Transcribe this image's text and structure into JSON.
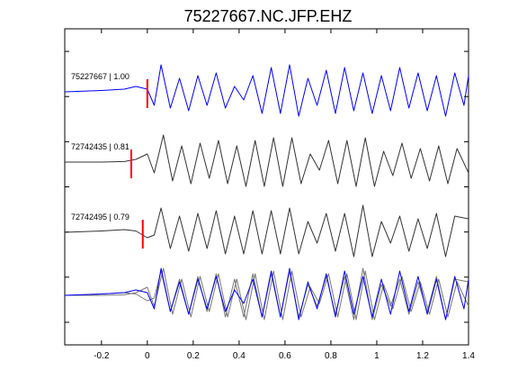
{
  "chart_data": {
    "type": "line",
    "title": "75227667.NC.JFP.EHZ",
    "xlabel": "",
    "ylabel": "",
    "xlim": [
      -0.36,
      1.4
    ],
    "x_ticks": [
      -0.2,
      0,
      0.2,
      0.4,
      0.6,
      0.8,
      1,
      1.2,
      1.4
    ],
    "x_tick_labels": [
      "-0.2",
      "0",
      "0.2",
      "0.4",
      "0.6",
      "0.8",
      "1",
      "1.2",
      "1.4"
    ],
    "grid": false,
    "colors": {
      "reference": "#0000ff",
      "match": "#333333",
      "pick": "#ff0000",
      "overlay_match": "#777777"
    },
    "traces": [
      {
        "label": "75227667 | 1.00",
        "color": "#0000ff",
        "pick_time": 0.0,
        "samples": [
          {
            "t": -0.36,
            "a": 0.0
          },
          {
            "t": -0.2,
            "a": 0.05
          },
          {
            "t": -0.1,
            "a": 0.1
          },
          {
            "t": -0.05,
            "a": 0.2
          },
          {
            "t": 0.0,
            "a": 0.1
          },
          {
            "t": 0.03,
            "a": -0.5
          },
          {
            "t": 0.06,
            "a": 1.0
          },
          {
            "t": 0.1,
            "a": -0.6
          },
          {
            "t": 0.14,
            "a": 0.5
          },
          {
            "t": 0.18,
            "a": -0.7
          },
          {
            "t": 0.22,
            "a": 0.6
          },
          {
            "t": 0.26,
            "a": -0.5
          },
          {
            "t": 0.3,
            "a": 0.7
          },
          {
            "t": 0.34,
            "a": -0.6
          },
          {
            "t": 0.38,
            "a": 0.2
          },
          {
            "t": 0.42,
            "a": -0.3
          },
          {
            "t": 0.46,
            "a": 0.6
          },
          {
            "t": 0.5,
            "a": -0.8
          },
          {
            "t": 0.54,
            "a": 0.9
          },
          {
            "t": 0.58,
            "a": -0.8
          },
          {
            "t": 0.62,
            "a": 1.0
          },
          {
            "t": 0.66,
            "a": -0.9
          },
          {
            "t": 0.7,
            "a": 0.5
          },
          {
            "t": 0.74,
            "a": -0.5
          },
          {
            "t": 0.78,
            "a": 0.8
          },
          {
            "t": 0.82,
            "a": -0.8
          },
          {
            "t": 0.86,
            "a": 0.9
          },
          {
            "t": 0.9,
            "a": -0.7
          },
          {
            "t": 0.94,
            "a": 0.7
          },
          {
            "t": 0.98,
            "a": -0.8
          },
          {
            "t": 1.02,
            "a": 0.6
          },
          {
            "t": 1.06,
            "a": -0.7
          },
          {
            "t": 1.1,
            "a": 0.9
          },
          {
            "t": 1.14,
            "a": -0.6
          },
          {
            "t": 1.18,
            "a": 0.7
          },
          {
            "t": 1.22,
            "a": -0.7
          },
          {
            "t": 1.26,
            "a": 0.6
          },
          {
            "t": 1.3,
            "a": -0.9
          },
          {
            "t": 1.34,
            "a": 0.7
          },
          {
            "t": 1.38,
            "a": -0.5
          },
          {
            "t": 1.4,
            "a": 0.6
          }
        ]
      },
      {
        "label": "72742435 | 0.81",
        "color": "#333333",
        "pick_time": -0.07,
        "samples": [
          {
            "t": -0.36,
            "a": 0.0
          },
          {
            "t": -0.2,
            "a": 0.0
          },
          {
            "t": -0.1,
            "a": 0.02
          },
          {
            "t": -0.05,
            "a": 0.1
          },
          {
            "t": 0.0,
            "a": 0.3
          },
          {
            "t": 0.03,
            "a": -0.4
          },
          {
            "t": 0.07,
            "a": 1.0
          },
          {
            "t": 0.11,
            "a": -0.7
          },
          {
            "t": 0.15,
            "a": 0.6
          },
          {
            "t": 0.19,
            "a": -0.8
          },
          {
            "t": 0.23,
            "a": 0.7
          },
          {
            "t": 0.27,
            "a": -0.6
          },
          {
            "t": 0.31,
            "a": 0.8
          },
          {
            "t": 0.35,
            "a": -0.8
          },
          {
            "t": 0.39,
            "a": 0.6
          },
          {
            "t": 0.43,
            "a": -0.9
          },
          {
            "t": 0.47,
            "a": 0.8
          },
          {
            "t": 0.51,
            "a": -0.9
          },
          {
            "t": 0.55,
            "a": 0.9
          },
          {
            "t": 0.59,
            "a": -0.9
          },
          {
            "t": 0.63,
            "a": 0.9
          },
          {
            "t": 0.67,
            "a": -0.8
          },
          {
            "t": 0.71,
            "a": 0.3
          },
          {
            "t": 0.75,
            "a": -0.3
          },
          {
            "t": 0.79,
            "a": 0.8
          },
          {
            "t": 0.83,
            "a": -0.8
          },
          {
            "t": 0.87,
            "a": 0.8
          },
          {
            "t": 0.91,
            "a": -0.9
          },
          {
            "t": 0.95,
            "a": 0.9
          },
          {
            "t": 0.99,
            "a": -0.9
          },
          {
            "t": 1.03,
            "a": 0.4
          },
          {
            "t": 1.07,
            "a": -0.5
          },
          {
            "t": 1.11,
            "a": 0.7
          },
          {
            "t": 1.15,
            "a": -0.6
          },
          {
            "t": 1.19,
            "a": 0.5
          },
          {
            "t": 1.23,
            "a": -0.7
          },
          {
            "t": 1.27,
            "a": 0.6
          },
          {
            "t": 1.31,
            "a": -0.8
          },
          {
            "t": 1.35,
            "a": 0.5
          },
          {
            "t": 1.4,
            "a": -0.4
          }
        ]
      },
      {
        "label": "72742495 | 0.79",
        "color": "#333333",
        "pick_time": -0.02,
        "samples": [
          {
            "t": -0.36,
            "a": 0.0
          },
          {
            "t": -0.2,
            "a": 0.05
          },
          {
            "t": -0.1,
            "a": 0.1
          },
          {
            "t": -0.05,
            "a": 0.05
          },
          {
            "t": 0.0,
            "a": -0.2
          },
          {
            "t": 0.03,
            "a": -0.1
          },
          {
            "t": 0.06,
            "a": 0.9
          },
          {
            "t": 0.1,
            "a": -0.6
          },
          {
            "t": 0.14,
            "a": 0.6
          },
          {
            "t": 0.18,
            "a": -0.7
          },
          {
            "t": 0.22,
            "a": 0.7
          },
          {
            "t": 0.26,
            "a": -0.6
          },
          {
            "t": 0.3,
            "a": 0.8
          },
          {
            "t": 0.34,
            "a": -0.8
          },
          {
            "t": 0.38,
            "a": 0.6
          },
          {
            "t": 0.42,
            "a": -0.8
          },
          {
            "t": 0.46,
            "a": 0.8
          },
          {
            "t": 0.5,
            "a": -0.8
          },
          {
            "t": 0.54,
            "a": 0.8
          },
          {
            "t": 0.58,
            "a": -0.8
          },
          {
            "t": 0.62,
            "a": 0.9
          },
          {
            "t": 0.66,
            "a": -0.8
          },
          {
            "t": 0.7,
            "a": 0.4
          },
          {
            "t": 0.74,
            "a": -0.4
          },
          {
            "t": 0.78,
            "a": 0.7
          },
          {
            "t": 0.82,
            "a": -0.7
          },
          {
            "t": 0.86,
            "a": 0.7
          },
          {
            "t": 0.9,
            "a": -0.9
          },
          {
            "t": 0.94,
            "a": 1.0
          },
          {
            "t": 0.98,
            "a": -0.9
          },
          {
            "t": 1.02,
            "a": 0.4
          },
          {
            "t": 1.06,
            "a": -0.4
          },
          {
            "t": 1.1,
            "a": 0.6
          },
          {
            "t": 1.14,
            "a": -0.7
          },
          {
            "t": 1.18,
            "a": 0.5
          },
          {
            "t": 1.22,
            "a": -0.6
          },
          {
            "t": 1.26,
            "a": 0.7
          },
          {
            "t": 1.3,
            "a": -0.9
          },
          {
            "t": 1.34,
            "a": 0.6
          },
          {
            "t": 1.4,
            "a": 0.5
          }
        ]
      }
    ]
  }
}
